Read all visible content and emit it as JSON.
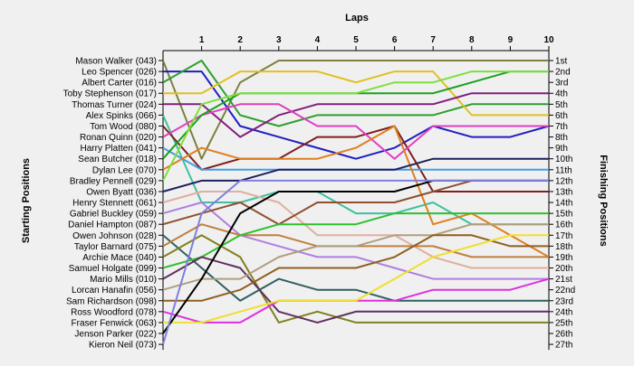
{
  "chart_data": {
    "type": "line",
    "x_title": "Laps",
    "y_left_title": "Starting Positions",
    "y_right_title": "Finishing Positions",
    "laps": [
      "1",
      "2",
      "3",
      "4",
      "5",
      "6",
      "7",
      "8",
      "9",
      "10"
    ],
    "finish_labels": [
      "1st",
      "2nd",
      "3rd",
      "4th",
      "5th",
      "6th",
      "7th",
      "8th",
      "9th",
      "10th",
      "11th",
      "12th",
      "13th",
      "14th",
      "15th",
      "16th",
      "17th",
      "18th",
      "19th",
      "20th",
      "21st",
      "22nd",
      "23rd",
      "24th",
      "25th",
      "26th",
      "27th"
    ],
    "grid": false,
    "series": [
      {
        "name": "Mason Walker (043)",
        "color": "#7f7f3f",
        "positions": [
          1,
          10,
          3,
          1,
          1,
          1,
          1,
          1,
          1,
          1,
          1
        ]
      },
      {
        "name": "Leo Spencer (026)",
        "color": "#1f1fbf",
        "positions": [
          2,
          2,
          7,
          8,
          9,
          10,
          9,
          7,
          8,
          8,
          7
        ]
      },
      {
        "name": "Albert Carter (016)",
        "color": "#2f9f2f",
        "positions": [
          3,
          1,
          6,
          7,
          6,
          6,
          6,
          6,
          5,
          5,
          5
        ]
      },
      {
        "name": "Toby Stephenson (017)",
        "color": "#e0c020",
        "positions": [
          4,
          4,
          2,
          2,
          2,
          3,
          2,
          2,
          6,
          6,
          6
        ]
      },
      {
        "name": "Thomas Turner (024)",
        "color": "#7f1f7f",
        "positions": [
          5,
          5,
          8,
          6,
          5,
          5,
          5,
          5,
          4,
          4,
          4
        ]
      },
      {
        "name": "Alex Spinks (066)",
        "color": "#3fbf9f",
        "positions": [
          6,
          14,
          14,
          13,
          13,
          15,
          15,
          14,
          16,
          16,
          16
        ]
      },
      {
        "name": "Tom Wood (080)",
        "color": "#7f1f1f",
        "positions": [
          7,
          11,
          10,
          10,
          8,
          8,
          7,
          13,
          13,
          13,
          13
        ]
      },
      {
        "name": "Ronan Quinn (020)",
        "color": "#df3fbf",
        "positions": [
          8,
          6,
          5,
          5,
          7,
          7,
          10,
          7,
          7,
          7,
          7
        ]
      },
      {
        "name": "Harry Platten (041)",
        "color": "#3f9fdf",
        "positions": [
          9,
          11,
          11,
          11,
          11,
          11,
          11,
          11,
          11,
          11,
          11
        ]
      },
      {
        "name": "Sean Butcher (018)",
        "color": "#1f9f1f",
        "positions": [
          10,
          6,
          4,
          4,
          4,
          4,
          4,
          4,
          3,
          2,
          2
        ]
      },
      {
        "name": "Dylan Lee (070)",
        "color": "#df7f1f",
        "positions": [
          11,
          9,
          10,
          10,
          10,
          9,
          7,
          16,
          15,
          17,
          19
        ]
      },
      {
        "name": "Bradley Pennell (029)",
        "color": "#7fdf3f",
        "positions": [
          12,
          5,
          4,
          4,
          4,
          4,
          3,
          3,
          2,
          2,
          2
        ]
      },
      {
        "name": "Owen Byatt (036)",
        "color": "#1f1f5f",
        "positions": [
          13,
          12,
          12,
          11,
          11,
          11,
          11,
          10,
          10,
          10,
          10
        ]
      },
      {
        "name": "Henry Stennett (061)",
        "color": "#dfaf9f",
        "positions": [
          14,
          13,
          13,
          14,
          17,
          17,
          17,
          19,
          20,
          20,
          20
        ]
      },
      {
        "name": "Gabriel Buckley (059)",
        "color": "#af7fdf",
        "positions": [
          15,
          14,
          17,
          18,
          19,
          19,
          20,
          21,
          21,
          21,
          21
        ]
      },
      {
        "name": "Daniel Hampton (087)",
        "color": "#8f4f2f",
        "positions": [
          16,
          15,
          14,
          16,
          14,
          14,
          14,
          13,
          12,
          12,
          12
        ]
      },
      {
        "name": "Owen Johnson (028)",
        "color": "#2f5f5f",
        "positions": [
          17,
          20,
          23,
          21,
          22,
          22,
          23,
          23,
          23,
          23,
          23
        ]
      },
      {
        "name": "Taylor Barnard (075)",
        "color": "#bf7f3f",
        "positions": [
          18,
          16,
          17,
          17,
          18,
          18,
          18,
          18,
          19,
          19,
          19
        ]
      },
      {
        "name": "Archie Mace (040)",
        "color": "#7f7f1f",
        "positions": [
          19,
          17,
          19,
          25,
          24,
          25,
          25,
          25,
          25,
          25,
          25
        ]
      },
      {
        "name": "Samuel Holgate (099)",
        "color": "#2fbf2f",
        "positions": [
          20,
          19,
          17,
          16,
          16,
          16,
          15,
          15,
          15,
          15,
          15
        ]
      },
      {
        "name": "Mario Mills (010)",
        "color": "#5f2f5f",
        "positions": [
          21,
          19,
          20,
          24,
          25,
          24,
          24,
          24,
          24,
          24,
          24
        ]
      },
      {
        "name": "Lorcan Hanafin (056)",
        "color": "#af9f7f",
        "positions": [
          22,
          21,
          21,
          19,
          18,
          18,
          17,
          17,
          16,
          16,
          16
        ]
      },
      {
        "name": "Sam Richardson (098)",
        "color": "#8f5f1f",
        "positions": [
          23,
          23,
          22,
          20,
          20,
          20,
          19,
          17,
          17,
          18,
          18
        ]
      },
      {
        "name": "Ross Woodford (078)",
        "color": "#df2fdf",
        "positions": [
          24,
          25,
          25,
          23,
          23,
          23,
          23,
          22,
          22,
          22,
          21
        ]
      },
      {
        "name": "Fraser Fenwick (063)",
        "color": "#efdf2f",
        "positions": [
          25,
          25,
          24,
          23,
          23,
          23,
          21,
          19,
          18,
          17,
          17
        ]
      },
      {
        "name": "Jenson Parker (022)",
        "color": "#000000",
        "positions": [
          26,
          21,
          15,
          13,
          13,
          13,
          13,
          12,
          12,
          12,
          12
        ]
      },
      {
        "name": "Kieron Neil (073)",
        "color": "#7f7fdf",
        "positions": [
          27,
          15,
          12,
          12,
          12,
          12,
          12,
          12,
          12,
          12,
          12
        ]
      }
    ]
  }
}
